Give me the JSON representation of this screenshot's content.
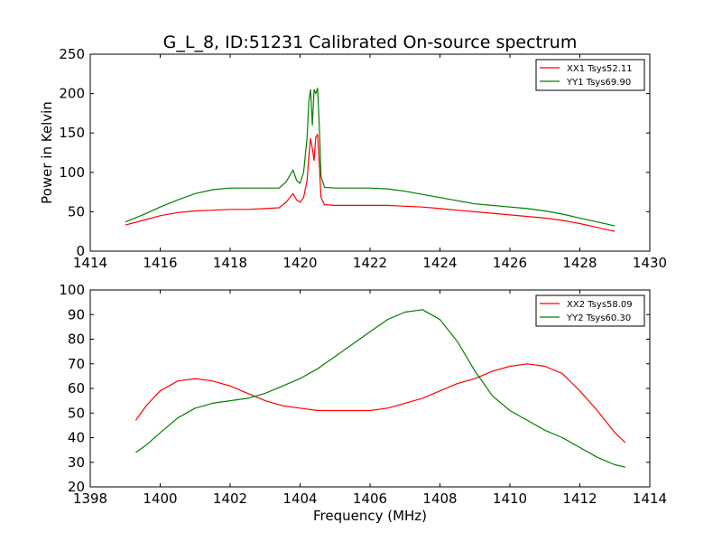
{
  "figure": {
    "title": "G_L_8, ID:51231 Calibrated On-source spectrum",
    "xlabel": "Frequency (MHz)"
  },
  "chart_data": [
    {
      "type": "line",
      "title": "G_L_8, ID:51231 Calibrated On-source spectrum",
      "xlabel": "",
      "ylabel": "Power in Kelvin",
      "xlim": [
        1414,
        1430
      ],
      "ylim": [
        0,
        250
      ],
      "xticks": [
        1414,
        1416,
        1418,
        1420,
        1422,
        1424,
        1426,
        1428,
        1430
      ],
      "yticks": [
        0,
        50,
        100,
        150,
        200,
        250
      ],
      "grid": false,
      "legend_position": "top-right",
      "series": [
        {
          "name": "XX1 Tsys52.11",
          "color": "#ff0000",
          "x": [
            1415.0,
            1415.5,
            1416.0,
            1416.5,
            1417.0,
            1417.5,
            1418.0,
            1418.5,
            1419.0,
            1419.4,
            1419.6,
            1419.8,
            1419.9,
            1420.0,
            1420.1,
            1420.2,
            1420.25,
            1420.3,
            1420.35,
            1420.4,
            1420.45,
            1420.5,
            1420.55,
            1420.6,
            1420.7,
            1421.0,
            1421.5,
            1422.0,
            1422.5,
            1423.0,
            1423.5,
            1424.0,
            1424.5,
            1425.0,
            1425.5,
            1426.0,
            1426.5,
            1427.0,
            1427.5,
            1428.0,
            1428.5,
            1429.0
          ],
          "y": [
            33,
            39,
            45,
            49,
            51,
            52,
            53,
            53,
            54,
            55,
            62,
            73,
            65,
            62,
            68,
            90,
            120,
            143,
            130,
            115,
            145,
            148,
            110,
            68,
            59,
            58,
            58,
            58,
            58,
            57,
            56,
            54,
            52,
            50,
            48,
            46,
            44,
            42,
            39,
            35,
            30,
            25
          ]
        },
        {
          "name": "YY1 Tsys69.90",
          "color": "#008000",
          "x": [
            1415.0,
            1415.5,
            1416.0,
            1416.5,
            1417.0,
            1417.5,
            1418.0,
            1418.5,
            1419.0,
            1419.4,
            1419.6,
            1419.8,
            1419.9,
            1420.0,
            1420.1,
            1420.2,
            1420.25,
            1420.3,
            1420.35,
            1420.4,
            1420.45,
            1420.5,
            1420.55,
            1420.6,
            1420.7,
            1421.0,
            1421.5,
            1422.0,
            1422.5,
            1423.0,
            1423.5,
            1424.0,
            1424.5,
            1425.0,
            1425.5,
            1426.0,
            1426.5,
            1427.0,
            1427.5,
            1428.0,
            1428.5,
            1429.0
          ],
          "y": [
            37,
            46,
            56,
            65,
            73,
            78,
            80,
            80,
            80,
            80,
            88,
            103,
            90,
            86,
            100,
            145,
            190,
            205,
            160,
            205,
            200,
            207,
            160,
            95,
            81,
            80,
            80,
            80,
            79,
            76,
            72,
            68,
            64,
            60,
            58,
            56,
            54,
            51,
            47,
            42,
            37,
            32
          ]
        }
      ]
    },
    {
      "type": "line",
      "title": "",
      "xlabel": "Frequency (MHz)",
      "ylabel": "",
      "xlim": [
        1398,
        1414
      ],
      "ylim": [
        20,
        100
      ],
      "xticks": [
        1398,
        1400,
        1402,
        1404,
        1406,
        1408,
        1410,
        1412,
        1414
      ],
      "yticks": [
        20,
        30,
        40,
        50,
        60,
        70,
        80,
        90,
        100
      ],
      "grid": false,
      "legend_position": "top-right",
      "series": [
        {
          "name": "XX2 Tsys58.09",
          "color": "#ff0000",
          "x": [
            1399.3,
            1399.6,
            1400.0,
            1400.5,
            1401.0,
            1401.5,
            1402.0,
            1402.5,
            1403.0,
            1403.5,
            1404.0,
            1404.5,
            1405.0,
            1405.5,
            1406.0,
            1406.5,
            1407.0,
            1407.5,
            1408.0,
            1408.5,
            1409.0,
            1409.5,
            1410.0,
            1410.5,
            1411.0,
            1411.5,
            1412.0,
            1412.5,
            1413.0,
            1413.3
          ],
          "y": [
            47,
            53,
            59,
            63,
            64,
            63,
            61,
            58,
            55,
            53,
            52,
            51,
            51,
            51,
            51,
            52,
            54,
            56,
            59,
            62,
            64,
            67,
            69,
            70,
            69,
            66,
            59,
            51,
            42,
            38
          ]
        },
        {
          "name": "YY2 Tsys60.30",
          "color": "#008000",
          "x": [
            1399.3,
            1399.6,
            1400.0,
            1400.5,
            1401.0,
            1401.5,
            1402.0,
            1402.5,
            1403.0,
            1403.5,
            1404.0,
            1404.5,
            1405.0,
            1405.5,
            1406.0,
            1406.5,
            1407.0,
            1407.5,
            1408.0,
            1408.5,
            1409.0,
            1409.5,
            1410.0,
            1410.5,
            1411.0,
            1411.5,
            1412.0,
            1412.5,
            1413.0,
            1413.3
          ],
          "y": [
            34,
            37,
            42,
            48,
            52,
            54,
            55,
            56,
            58,
            61,
            64,
            68,
            73,
            78,
            83,
            88,
            91,
            92,
            88,
            79,
            67,
            57,
            51,
            47,
            43,
            40,
            36,
            32,
            29,
            28
          ]
        }
      ]
    }
  ]
}
